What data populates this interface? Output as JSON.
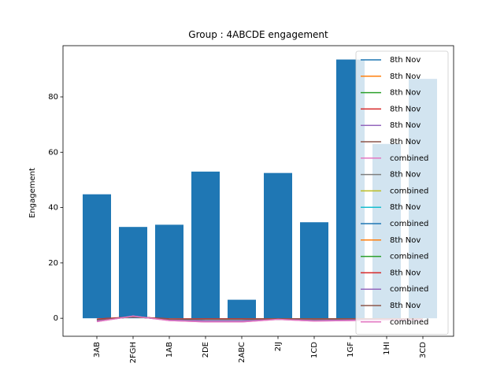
{
  "chart_data": {
    "type": "bar",
    "title": "Group : 4ABCDE engagement",
    "xlabel": "",
    "ylabel": "Engagement",
    "categories": [
      "3AB",
      "2FGH",
      "1AB",
      "2DE",
      "2ABC",
      "2IJ",
      "1CD",
      "1GF",
      "1HI",
      "3CD"
    ],
    "values": [
      44.8,
      33.0,
      33.8,
      53.0,
      6.7,
      52.5,
      34.7,
      93.5,
      63.0,
      86.5
    ],
    "bar_color": "#1f77b4",
    "ylim": [
      -6.5,
      98.5
    ],
    "yticks": [
      0,
      20,
      40,
      60,
      80
    ],
    "grid": false,
    "legend_placement": "right (upper, overlapping bars)",
    "series": [
      {
        "name": "8th Nov",
        "color": "#1f77b4",
        "values": [
          -0.5,
          0.5,
          -0.3,
          -0.3,
          -0.3,
          -0.2,
          -0.2,
          -0.2,
          -0.2,
          -0.2
        ]
      },
      {
        "name": "8th Nov",
        "color": "#ff7f0e",
        "values": [
          -0.5,
          0.5,
          -0.3,
          -0.3,
          -0.3,
          -0.2,
          -0.2,
          -0.2,
          -0.2,
          -0.2
        ]
      },
      {
        "name": "8th Nov",
        "color": "#2ca02c",
        "values": [
          -0.5,
          0.5,
          -0.3,
          -0.3,
          -0.3,
          -0.2,
          -0.2,
          -0.2,
          -0.2,
          -0.2
        ]
      },
      {
        "name": "8th Nov",
        "color": "#d62728",
        "values": [
          -0.3,
          0.5,
          -0.3,
          -0.2,
          -0.2,
          -0.2,
          -0.2,
          -0.2,
          -0.2,
          -0.2
        ]
      },
      {
        "name": "8th Nov",
        "color": "#9467bd",
        "values": [
          -0.8,
          0.6,
          -0.5,
          -0.8,
          -0.8,
          -0.3,
          -0.6,
          -0.5,
          -0.4,
          -0.4
        ]
      },
      {
        "name": "8th Nov",
        "color": "#8c564b",
        "values": [
          -0.5,
          0.5,
          -0.3,
          -0.3,
          -0.3,
          -0.2,
          -0.2,
          -0.2,
          -0.2,
          -0.2
        ]
      },
      {
        "name": "combined",
        "color": "#e377c2",
        "values": [
          -1.2,
          0.8,
          -0.8,
          -1.3,
          -1.3,
          -0.4,
          -1.0,
          -0.8,
          -0.6,
          -0.6
        ]
      },
      {
        "name": "8th Nov",
        "color": "#7f7f7f",
        "values": [
          -0.5,
          0.5,
          -0.3,
          -0.3,
          -0.3,
          -0.2,
          -0.2,
          -0.2,
          -0.2,
          -0.2
        ]
      },
      {
        "name": "combined",
        "color": "#bcbd22",
        "values": [
          -0.9,
          0.7,
          -0.6,
          -1.0,
          -1.0,
          -0.3,
          -0.8,
          -0.6,
          -0.5,
          -0.5
        ]
      },
      {
        "name": "8th Nov",
        "color": "#17becf",
        "values": [
          -0.5,
          0.5,
          -0.3,
          -0.3,
          -0.3,
          -0.2,
          -0.2,
          -0.2,
          -0.2,
          -0.2
        ]
      },
      {
        "name": "combined",
        "color": "#1f77b4",
        "values": [
          -0.9,
          0.7,
          -0.6,
          -1.0,
          -1.0,
          -0.3,
          -0.8,
          -0.6,
          -0.5,
          -0.5
        ]
      },
      {
        "name": "8th Nov",
        "color": "#ff7f0e",
        "values": [
          -0.5,
          0.5,
          -0.3,
          -0.3,
          -0.3,
          -0.2,
          -0.2,
          -0.2,
          -0.2,
          -0.2
        ]
      },
      {
        "name": "combined",
        "color": "#2ca02c",
        "values": [
          -0.9,
          0.7,
          -0.6,
          -1.0,
          -1.0,
          -0.3,
          -0.8,
          -0.6,
          -0.5,
          -0.5
        ]
      },
      {
        "name": "8th Nov",
        "color": "#d62728",
        "values": [
          -0.3,
          0.5,
          -0.2,
          -0.2,
          -0.2,
          -0.2,
          -0.2,
          -0.2,
          -0.2,
          -0.2
        ]
      },
      {
        "name": "combined",
        "color": "#9467bd",
        "values": [
          -0.9,
          0.7,
          -0.6,
          -1.0,
          -1.0,
          -0.3,
          -0.8,
          -0.6,
          -0.5,
          -0.5
        ]
      },
      {
        "name": "8th Nov",
        "color": "#8c564b",
        "values": [
          -0.5,
          0.5,
          -0.3,
          -0.3,
          -0.3,
          -0.2,
          -0.2,
          -0.2,
          -0.2,
          -0.2
        ]
      },
      {
        "name": "combined",
        "color": "#e377c2",
        "values": [
          -1.2,
          0.8,
          -0.8,
          -1.3,
          -1.3,
          -0.4,
          -1.0,
          -0.8,
          -0.6,
          -0.6
        ]
      }
    ]
  }
}
